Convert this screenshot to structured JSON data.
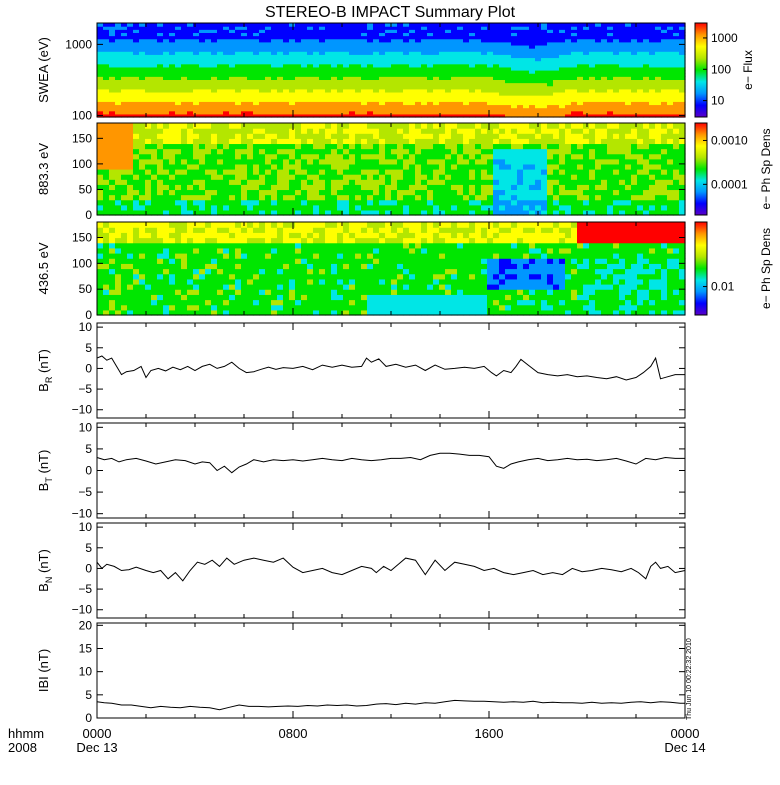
{
  "figure": {
    "title": "STEREO-B IMPACT Summary Plot",
    "timestamp": "Thu Jun 10 00:22:32 2010"
  },
  "time_axis": {
    "left_label_1": "hhmm",
    "left_label_2": "2008",
    "ticks": [
      {
        "hour": 0,
        "label": "0000",
        "date": "Dec 13"
      },
      {
        "hour": 8,
        "label": "0800",
        "date": ""
      },
      {
        "hour": 16,
        "label": "1600",
        "date": ""
      },
      {
        "hour": 24,
        "label": "0000",
        "date": "Dec 14"
      }
    ]
  },
  "colors": {
    "rainbow": [
      "#5a00c8",
      "#0000ff",
      "#0096ff",
      "#00e6e6",
      "#00e600",
      "#b4e600",
      "#ffff00",
      "#ff9600",
      "#ff0000"
    ],
    "line": "#000000"
  },
  "chart_data": [
    {
      "type": "heatmap",
      "id": "swea",
      "ylabel": "SWEA (eV)",
      "y_scale": "log",
      "ylim": [
        95,
        2000
      ],
      "yticks": [
        100,
        1000
      ],
      "ytick_labels": [
        "100",
        "1000"
      ],
      "colorbar": {
        "label": "e− Flux",
        "scale": "log",
        "range": [
          3,
          3000
        ],
        "ticks": [
          10,
          100,
          1000
        ],
        "tick_labels": [
          "10",
          "100",
          "1000"
        ]
      },
      "x_range_hours": [
        0,
        24
      ]
    },
    {
      "type": "heatmap",
      "id": "pad883",
      "ylabel": "883.3 eV",
      "ylim": [
        0,
        180
      ],
      "yticks": [
        0,
        50,
        100,
        150
      ],
      "ytick_labels": [
        "0",
        "50",
        "100",
        "150"
      ],
      "colorbar": {
        "label": "e− Ph Sp Dens",
        "scale": "log",
        "range": [
          2e-05,
          0.0025
        ],
        "ticks": [
          0.0001,
          0.001
        ],
        "tick_labels": [
          "0.0001",
          "0.0010"
        ]
      },
      "x_range_hours": [
        0,
        24
      ]
    },
    {
      "type": "heatmap",
      "id": "pad436",
      "ylabel": "436.5 eV",
      "ylim": [
        0,
        180
      ],
      "yticks": [
        0,
        50,
        100,
        150
      ],
      "ytick_labels": [
        "0",
        "50",
        "100",
        "150"
      ],
      "colorbar": {
        "label": "e− Ph Sp Dens",
        "scale": "log",
        "range": [
          0.004,
          0.08
        ],
        "ticks": [
          0.01
        ],
        "tick_labels": [
          "0.01"
        ]
      },
      "x_range_hours": [
        0,
        24
      ]
    },
    {
      "type": "line",
      "id": "br",
      "ylabel": "B",
      "ylabel_sub": "R",
      "ylabel_unit": "(nT)",
      "ylim": [
        -12,
        11
      ],
      "yticks": [
        -10,
        -5,
        0,
        5,
        10
      ],
      "ytick_labels": [
        "−10",
        "−5",
        "0",
        "5",
        "10"
      ],
      "x": [
        0,
        0.2,
        0.4,
        0.6,
        0.8,
        1.0,
        1.2,
        1.5,
        1.8,
        2.0,
        2.2,
        2.5,
        2.8,
        3.1,
        3.4,
        3.7,
        4.0,
        4.3,
        4.6,
        4.9,
        5.2,
        5.5,
        5.8,
        6.1,
        6.4,
        6.7,
        7.0,
        7.3,
        7.6,
        8.0,
        8.4,
        8.8,
        9.2,
        9.6,
        10.0,
        10.4,
        10.8,
        11.0,
        11.2,
        11.5,
        11.8,
        12.2,
        12.6,
        13.0,
        13.4,
        13.8,
        14.2,
        14.6,
        15.0,
        15.4,
        15.8,
        16.1,
        16.3,
        16.6,
        16.9,
        17.1,
        17.3,
        17.6,
        18.0,
        18.4,
        18.8,
        19.2,
        19.6,
        20.0,
        20.4,
        20.8,
        21.2,
        21.6,
        22.0,
        22.3,
        22.6,
        22.8,
        23.0,
        23.3,
        23.6,
        24.0
      ],
      "y": [
        2.5,
        3.0,
        2.0,
        2.5,
        0.5,
        -1.5,
        -0.8,
        -0.5,
        0.5,
        -2.2,
        -0.5,
        0.0,
        -0.6,
        0.3,
        -0.3,
        0.5,
        -0.5,
        0.5,
        1.0,
        0.0,
        0.5,
        1.5,
        0.0,
        -1.0,
        -0.8,
        -0.2,
        0.3,
        -0.2,
        0.2,
        0.0,
        0.5,
        -0.3,
        0.8,
        0.3,
        0.8,
        0.3,
        0.5,
        2.5,
        1.5,
        2.3,
        0.5,
        1.0,
        0.3,
        0.8,
        -0.5,
        0.8,
        -0.2,
        0.0,
        0.3,
        0.0,
        0.5,
        -1.0,
        -1.8,
        -0.5,
        -1.0,
        0.5,
        2.2,
        0.8,
        -1.0,
        -1.5,
        -1.8,
        -1.5,
        -2.0,
        -1.8,
        -2.2,
        -2.5,
        -2.0,
        -2.8,
        -2.2,
        -1.0,
        0.5,
        2.5,
        -2.5,
        -2.0,
        -1.5,
        -1.5
      ]
    },
    {
      "type": "line",
      "id": "bt",
      "ylabel": "B",
      "ylabel_sub": "T",
      "ylabel_unit": "(nT)",
      "ylim": [
        -11,
        11
      ],
      "yticks": [
        -10,
        -5,
        0,
        5,
        10
      ],
      "ytick_labels": [
        "−10",
        "−5",
        "0",
        "5",
        "10"
      ],
      "x": [
        0,
        0.3,
        0.6,
        0.9,
        1.2,
        1.6,
        2.0,
        2.4,
        2.8,
        3.2,
        3.6,
        4.0,
        4.3,
        4.6,
        4.9,
        5.2,
        5.5,
        5.8,
        6.1,
        6.4,
        6.8,
        7.2,
        7.6,
        8.0,
        8.4,
        8.8,
        9.2,
        9.6,
        10.0,
        10.4,
        10.8,
        11.2,
        11.6,
        12.0,
        12.4,
        12.8,
        13.2,
        13.6,
        14.0,
        14.4,
        14.8,
        15.2,
        15.6,
        16.0,
        16.3,
        16.6,
        16.9,
        17.2,
        17.6,
        18.0,
        18.4,
        18.8,
        19.2,
        19.6,
        20.0,
        20.4,
        20.8,
        21.2,
        21.6,
        22.0,
        22.4,
        22.8,
        23.2,
        23.6,
        24.0
      ],
      "y": [
        3.0,
        2.5,
        2.8,
        2.0,
        2.5,
        2.8,
        2.2,
        1.5,
        2.0,
        2.5,
        2.3,
        1.5,
        2.0,
        1.8,
        0.0,
        1.0,
        -0.5,
        0.8,
        1.5,
        2.5,
        2.0,
        2.5,
        2.3,
        2.5,
        2.2,
        2.5,
        2.8,
        2.5,
        2.3,
        2.8,
        2.5,
        2.3,
        2.5,
        2.8,
        2.8,
        3.0,
        2.5,
        3.5,
        4.0,
        4.0,
        3.8,
        3.5,
        3.5,
        3.2,
        1.0,
        0.5,
        1.5,
        2.0,
        2.5,
        2.8,
        2.3,
        2.5,
        2.8,
        2.5,
        2.6,
        2.3,
        2.5,
        2.8,
        2.2,
        1.5,
        2.8,
        2.5,
        3.0,
        2.8,
        2.8
      ]
    },
    {
      "type": "line",
      "id": "bn",
      "ylabel": "B",
      "ylabel_sub": "N",
      "ylabel_unit": "(nT)",
      "ylim": [
        -12,
        11
      ],
      "yticks": [
        -10,
        -5,
        0,
        5,
        10
      ],
      "ytick_labels": [
        "−10",
        "−5",
        "0",
        "5",
        "10"
      ],
      "x": [
        0,
        0.2,
        0.4,
        0.7,
        1.0,
        1.3,
        1.6,
        2.0,
        2.3,
        2.6,
        2.9,
        3.2,
        3.5,
        3.8,
        4.1,
        4.4,
        4.7,
        5.0,
        5.3,
        5.6,
        6.0,
        6.4,
        6.8,
        7.2,
        7.6,
        8.0,
        8.4,
        8.8,
        9.2,
        9.6,
        10.0,
        10.4,
        10.8,
        11.2,
        11.4,
        11.7,
        12.0,
        12.3,
        12.6,
        13.0,
        13.4,
        13.8,
        14.2,
        14.6,
        15.0,
        15.4,
        15.8,
        16.2,
        16.6,
        17.0,
        17.4,
        17.8,
        18.2,
        18.6,
        19.0,
        19.4,
        19.8,
        20.2,
        20.6,
        21.0,
        21.4,
        21.8,
        22.1,
        22.4,
        22.6,
        22.8,
        23.0,
        23.3,
        23.6,
        24.0
      ],
      "y": [
        1.5,
        0.0,
        1.0,
        0.5,
        -0.5,
        -0.3,
        0.3,
        -0.5,
        -1.0,
        -0.5,
        -2.5,
        -1.0,
        -3.0,
        -0.5,
        1.5,
        1.0,
        2.0,
        0.5,
        2.5,
        1.0,
        2.0,
        2.5,
        2.0,
        1.5,
        2.5,
        0.3,
        -1.0,
        -0.5,
        0.0,
        -1.0,
        -1.5,
        -0.5,
        0.5,
        0.0,
        -1.0,
        0.5,
        -0.5,
        1.0,
        2.5,
        2.0,
        -1.5,
        2.0,
        -0.5,
        1.5,
        1.0,
        0.5,
        -0.5,
        0.0,
        -1.0,
        -1.5,
        -1.0,
        -0.5,
        -1.5,
        -1.0,
        -1.5,
        0.0,
        -0.8,
        -0.5,
        0.0,
        -0.3,
        -0.8,
        0.0,
        -1.0,
        -2.5,
        0.5,
        1.5,
        0.0,
        0.5,
        -1.0,
        -0.5
      ]
    },
    {
      "type": "line",
      "id": "bmag",
      "ylabel": "IBI",
      "ylabel_unit": "(nT)",
      "ylim": [
        0,
        20.5
      ],
      "yticks": [
        0,
        5,
        10,
        15,
        20
      ],
      "ytick_labels": [
        "0",
        "5",
        "10",
        "15",
        "20"
      ],
      "x": [
        0,
        0.3,
        0.6,
        1.0,
        1.4,
        1.8,
        2.2,
        2.6,
        3.0,
        3.4,
        3.8,
        4.2,
        4.6,
        5.0,
        5.4,
        5.8,
        6.2,
        6.6,
        7.0,
        7.4,
        7.8,
        8.2,
        8.6,
        9.0,
        9.4,
        9.8,
        10.2,
        10.6,
        11.0,
        11.4,
        11.8,
        12.2,
        12.6,
        13.0,
        13.4,
        13.8,
        14.2,
        14.6,
        15.0,
        15.4,
        15.8,
        16.2,
        16.6,
        17.0,
        17.4,
        17.8,
        18.2,
        18.6,
        19.0,
        19.4,
        19.8,
        20.2,
        20.6,
        21.0,
        21.4,
        21.8,
        22.2,
        22.6,
        23.0,
        23.4,
        23.8,
        24.0
      ],
      "y": [
        3.5,
        3.3,
        3.2,
        2.8,
        2.8,
        2.5,
        2.2,
        2.5,
        2.3,
        2.2,
        2.5,
        2.3,
        2.2,
        1.8,
        2.3,
        2.8,
        2.5,
        2.5,
        2.4,
        2.5,
        2.6,
        2.5,
        2.7,
        2.6,
        2.8,
        2.7,
        2.8,
        2.6,
        2.7,
        3.0,
        3.1,
        2.9,
        3.2,
        3.0,
        3.3,
        3.2,
        3.5,
        3.8,
        3.7,
        3.6,
        3.6,
        3.5,
        3.4,
        3.5,
        3.4,
        3.6,
        3.3,
        3.4,
        3.3,
        3.3,
        3.2,
        3.4,
        3.2,
        3.3,
        3.2,
        3.4,
        3.5,
        3.3,
        3.5,
        3.4,
        3.2,
        3.2
      ]
    }
  ]
}
